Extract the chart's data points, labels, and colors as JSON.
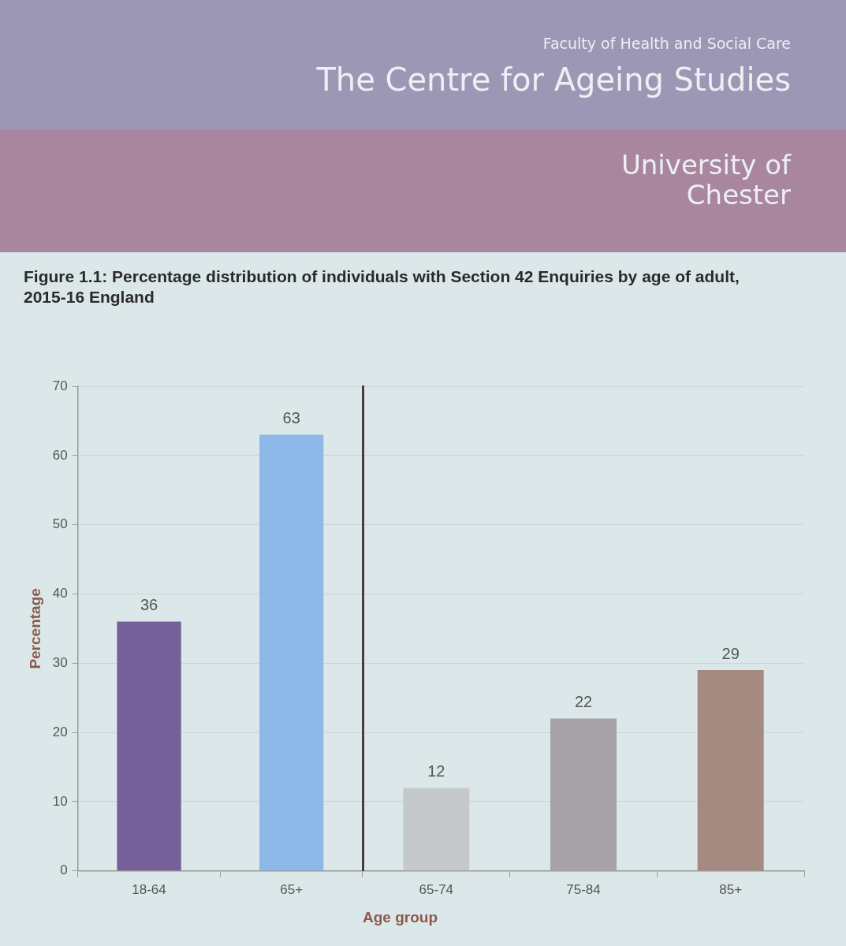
{
  "chart_data": [
    {
      "type": "bar",
      "title": "Figure 1.1: Percentage distribution of individuals with Section 42 Enquiries by age of adult, 2015-16 England",
      "ylabel": "Percentage",
      "annotations": [
        "Faculty of Health and Social Care",
        "The Centre for Ageing Studies",
        "University of Chester"
      ],
      "categories": [
        "18-64",
        "65+"
      ],
      "values": [
        36,
        63
      ],
      "colors": [
        "#76609a",
        "#8db8e8"
      ],
      "ylim": [
        0,
        70
      ],
      "yticks": [
        0,
        10,
        20,
        30,
        40,
        50,
        60,
        70
      ],
      "grid": "y",
      "data_labels": true
    },
    {
      "type": "bar",
      "xlabel": "Age group",
      "categories": [
        "65-74",
        "75-84",
        "85+"
      ],
      "values": [
        12,
        22,
        29
      ],
      "colors": [
        "#c6c9cb",
        "#a7a1a8",
        "#a48a80"
      ],
      "ylim": [
        0,
        70
      ],
      "yticks": [
        0,
        10,
        20,
        30,
        40,
        50,
        60,
        70
      ],
      "grid": "y",
      "data_labels": true,
      "tick_labels": "x"
    }
  ]
}
